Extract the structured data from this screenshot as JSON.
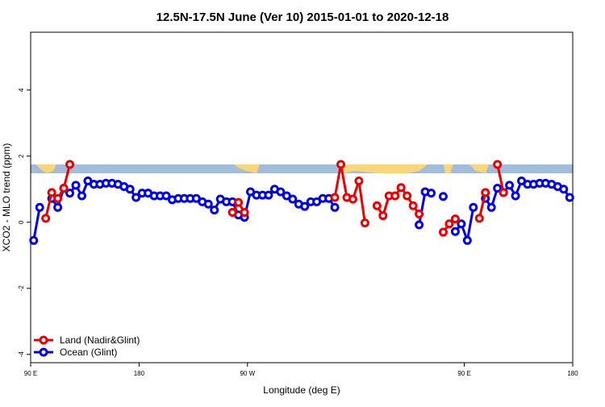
{
  "chart_data": {
    "type": "line",
    "title": "12.5N-17.5N June (Ver 10)   2015-01-01 to 2020-12-18",
    "xlabel": "Longitude (deg E)",
    "ylabel": "XCO2 - MLO trend (ppm)",
    "x": [
      92.5,
      97.5,
      102.5,
      107.5,
      112.5,
      117.5,
      122.5,
      127.5,
      132.5,
      137.5,
      142.5,
      147.5,
      152.5,
      157.5,
      162.5,
      167.5,
      172.5,
      177.5,
      182.5,
      187.5,
      192.5,
      197.5,
      202.5,
      207.5,
      212.5,
      217.5,
      222.5,
      227.5,
      232.5,
      237.5,
      242.5,
      247.5,
      252.5,
      257.5,
      262.5,
      267.5,
      272.5,
      277.5,
      282.5,
      287.5,
      292.5,
      297.5,
      302.5,
      307.5,
      312.5,
      317.5,
      322.5,
      327.5,
      332.5,
      337.5,
      342.5,
      347.5,
      352.5,
      357.5,
      362.5,
      367.5,
      372.5,
      377.5,
      382.5,
      387.5,
      392.5,
      397.5,
      402.5,
      407.5,
      412.5,
      417.5,
      422.5,
      427.5,
      432.5,
      437.5,
      442.5,
      447.5,
      452.5,
      457.5,
      462.5,
      467.5,
      472.5,
      477.5,
      482.5,
      487.5,
      492.5,
      497.5,
      502.5,
      507.5,
      512.5,
      517.5,
      522.5,
      527.5,
      532.5,
      537.5
    ],
    "series": [
      {
        "name": "Ocean (Glint)",
        "color": "#0000ee",
        "values": [
          -0.55,
          0.45,
          null,
          0.72,
          0.45,
          1.03,
          0.88,
          1.12,
          0.8,
          1.25,
          1.15,
          1.15,
          1.18,
          1.18,
          1.15,
          1.08,
          1.0,
          0.75,
          0.88,
          0.88,
          0.8,
          0.8,
          0.8,
          0.68,
          0.72,
          0.72,
          0.72,
          0.72,
          0.62,
          0.55,
          0.37,
          0.7,
          0.62,
          0.62,
          0.22,
          0.15,
          0.92,
          0.82,
          0.82,
          0.82,
          1.0,
          0.92,
          0.8,
          0.7,
          0.55,
          0.48,
          0.62,
          0.62,
          0.72,
          0.72,
          0.45,
          null,
          null,
          null,
          null,
          null,
          null,
          null,
          null,
          null,
          null,
          null,
          null,
          null,
          -0.08,
          0.92,
          0.88,
          null,
          0.78,
          null,
          -0.28,
          -0.05,
          -0.55,
          0.45,
          null,
          0.72,
          0.45,
          1.03,
          0.9,
          1.12,
          0.8,
          1.25,
          1.15,
          1.15,
          1.18,
          1.18,
          1.15,
          1.08,
          1.0,
          0.75
        ]
      },
      {
        "name": "Land (Nadir&Glint)",
        "color": "#ee0000",
        "values": [
          null,
          null,
          0.12,
          0.9,
          0.72,
          1.03,
          1.75,
          null,
          null,
          null,
          null,
          null,
          null,
          null,
          null,
          null,
          null,
          null,
          null,
          null,
          null,
          null,
          null,
          null,
          null,
          null,
          null,
          null,
          null,
          null,
          null,
          null,
          null,
          0.3,
          0.6,
          0.3,
          null,
          null,
          null,
          null,
          null,
          null,
          null,
          null,
          null,
          null,
          null,
          null,
          null,
          null,
          0.75,
          1.75,
          0.75,
          0.7,
          1.25,
          -0.02,
          null,
          0.5,
          0.2,
          0.8,
          0.8,
          1.05,
          0.8,
          0.5,
          0.25,
          null,
          null,
          null,
          -0.3,
          -0.05,
          0.1,
          null,
          null,
          null,
          0.12,
          0.9,
          null,
          1.75,
          0.9,
          null,
          null,
          null,
          null,
          null,
          null,
          null,
          null,
          null,
          null,
          null
        ]
      }
    ],
    "xlim": [
      90,
      540
    ],
    "xticks": [
      {
        "value": 90,
        "label": "90 E"
      },
      {
        "value": 180,
        "label": "180"
      },
      {
        "value": 270,
        "label": "90 W"
      },
      {
        "value": 450,
        "label": "90 E"
      },
      {
        "value": 540,
        "label": "180"
      }
    ],
    "ylim": [
      -4.25,
      5.75
    ],
    "yticks": [
      -4,
      -2,
      0,
      2,
      4
    ],
    "legend": "bottom-left"
  }
}
